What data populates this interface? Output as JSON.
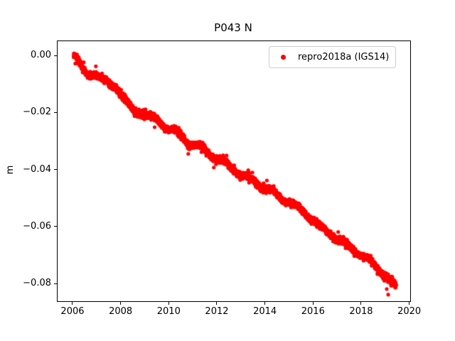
{
  "window": {
    "background": "#ffffff"
  },
  "chart_data": {
    "type": "scatter",
    "title": "P043 N",
    "xlabel": "",
    "ylabel": "m",
    "grid": false,
    "legend": {
      "location": "upper right",
      "border_color": "#cccccc",
      "entries": [
        {
          "label": "repro2018a (IGS14)",
          "marker": "dot",
          "marker_color": "#ff0000"
        }
      ]
    },
    "axes": {
      "xlim": [
        2005.38,
        2020.04
      ],
      "ylim": [
        -0.0862,
        0.005
      ],
      "x_ticks": [
        2006,
        2008,
        2010,
        2012,
        2014,
        2016,
        2018,
        2020
      ],
      "x_tick_labels": [
        "2006",
        "2008",
        "2010",
        "2012",
        "2014",
        "2016",
        "2018",
        "2020"
      ],
      "y_ticks": [
        0.0,
        -0.02,
        -0.04,
        -0.06,
        -0.08
      ],
      "y_tick_labels": [
        "0.00",
        "−0.02",
        "−0.04",
        "−0.06",
        "−0.08"
      ],
      "spine_color": "#000000",
      "tick_color": "#000000",
      "text_color": "#000000"
    },
    "series": [
      {
        "name": "repro2018a (IGS14)",
        "color": "#ff0000",
        "marker_diameter_px": 5.2,
        "x_start": 2006.05,
        "x_end": 2019.45,
        "n_points": 4800,
        "seasonal_amplitude_m": 0.0007,
        "noise_sigma_m": 0.00055,
        "trend_anchors": [
          [
            2006.05,
            0.0005
          ],
          [
            2006.15,
            -0.0008
          ],
          [
            2006.45,
            -0.0055
          ],
          [
            2006.7,
            -0.0068
          ],
          [
            2006.95,
            -0.0062
          ],
          [
            2007.2,
            -0.0085
          ],
          [
            2007.5,
            -0.0098
          ],
          [
            2007.8,
            -0.0108
          ],
          [
            2008.1,
            -0.0145
          ],
          [
            2008.45,
            -0.019
          ],
          [
            2008.8,
            -0.0198
          ],
          [
            2009.1,
            -0.021
          ],
          [
            2009.5,
            -0.0225
          ],
          [
            2009.8,
            -0.0245
          ],
          [
            2010.1,
            -0.026
          ],
          [
            2010.45,
            -0.0277
          ],
          [
            2010.8,
            -0.0305
          ],
          [
            2011.1,
            -0.0315
          ],
          [
            2011.5,
            -0.0332
          ],
          [
            2011.9,
            -0.0355
          ],
          [
            2012.3,
            -0.0375
          ],
          [
            2012.7,
            -0.0398
          ],
          [
            2013.1,
            -0.0422
          ],
          [
            2013.5,
            -0.0438
          ],
          [
            2013.9,
            -0.0458
          ],
          [
            2014.3,
            -0.0478
          ],
          [
            2014.7,
            -0.05
          ],
          [
            2015.1,
            -0.052
          ],
          [
            2015.5,
            -0.0542
          ],
          [
            2015.9,
            -0.0568
          ],
          [
            2016.3,
            -0.0605
          ],
          [
            2016.7,
            -0.0622
          ],
          [
            2017.1,
            -0.0648
          ],
          [
            2017.5,
            -0.067
          ],
          [
            2017.9,
            -0.0692
          ],
          [
            2018.3,
            -0.0718
          ],
          [
            2018.7,
            -0.0745
          ],
          [
            2019.0,
            -0.0772
          ],
          [
            2019.2,
            -0.0792
          ],
          [
            2019.45,
            -0.0813
          ]
        ]
      }
    ]
  }
}
